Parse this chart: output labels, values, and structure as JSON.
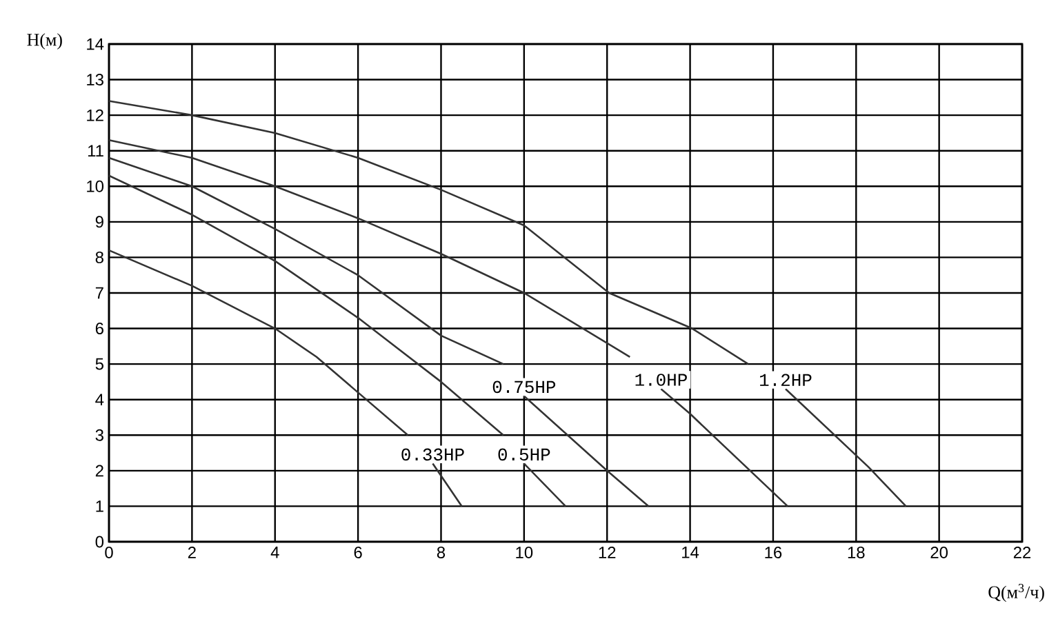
{
  "chart_data": {
    "type": "line",
    "xlabel": "Q(м$^{3}$/ч)",
    "ylabel": "H(м)",
    "xlim": [
      0,
      22
    ],
    "xticks": [
      0,
      2,
      4,
      6,
      8,
      10,
      12,
      14,
      16,
      18,
      20,
      22
    ],
    "ylim": [
      0,
      14
    ],
    "yticks": [
      0,
      1,
      2,
      3,
      4,
      5,
      6,
      7,
      8,
      9,
      10,
      11,
      12,
      13,
      14
    ],
    "grid": true,
    "marker": "none",
    "line_style": "solid",
    "series": [
      {
        "name": "0.33HP",
        "color": "#333333",
        "x": [
          0,
          2,
          4,
          5,
          6,
          7.2,
          7.5,
          7.8,
          8.5
        ],
        "values": [
          8.2,
          7.2,
          6.0,
          5.2,
          4.2,
          3.0,
          null,
          2.2,
          1.0
        ]
      },
      {
        "name": "0.5HP",
        "color": "#333333",
        "x": [
          0,
          2,
          4,
          6,
          8,
          9.5,
          9.7,
          10.0,
          11
        ],
        "values": [
          10.3,
          9.2,
          7.9,
          6.3,
          4.5,
          3.0,
          null,
          2.2,
          1.0
        ]
      },
      {
        "name": "0.75HP",
        "color": "#333333",
        "x": [
          0,
          2,
          4,
          6,
          8,
          9.5,
          9.8,
          10,
          12,
          13
        ],
        "values": [
          10.8,
          10.0,
          8.8,
          7.5,
          5.8,
          5.0,
          null,
          4.1,
          2.0,
          1.0
        ]
      },
      {
        "name": "1.0HP",
        "color": "#333333",
        "x": [
          0,
          2,
          4,
          6,
          8,
          10,
          12.55,
          13,
          13.3,
          14,
          16.35
        ],
        "values": [
          11.3,
          10.8,
          10.0,
          9.1,
          8.1,
          7.0,
          5.2,
          null,
          4.3,
          3.6,
          1.0
        ]
      },
      {
        "name": "1.2HP",
        "color": "#333333",
        "x": [
          0,
          2,
          4,
          6,
          8,
          10,
          12.05,
          14.05,
          15.4,
          15.8,
          16.3,
          18.3,
          19.2
        ],
        "values": [
          12.4,
          12.0,
          11.5,
          10.8,
          9.9,
          8.9,
          7.0,
          6.0,
          5.0,
          null,
          4.3,
          2.1,
          1.0
        ]
      }
    ]
  }
}
